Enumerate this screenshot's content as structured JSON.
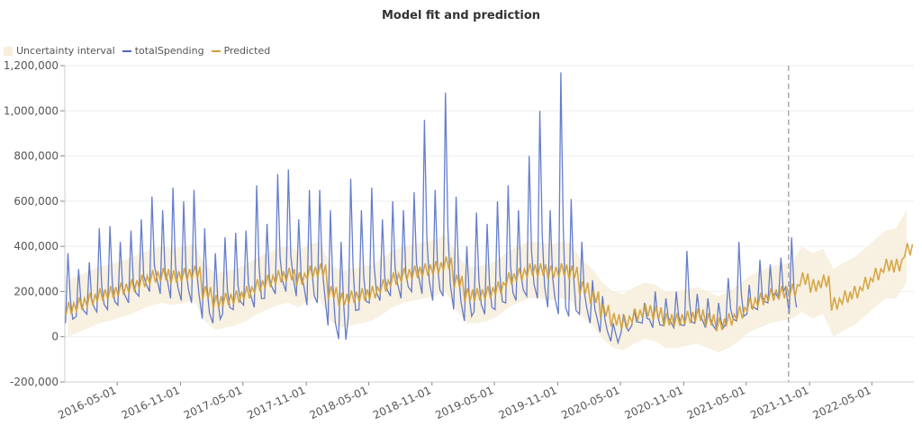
{
  "chart_data": {
    "type": "line",
    "title": "Model fit and prediction",
    "legend": {
      "position": "top-left",
      "entries": [
        "Uncertainty interval",
        "totalSpending",
        "Predicted"
      ]
    },
    "colors": {
      "interval": "#f7efdc",
      "totalSpending": "#4a67c4",
      "Predicted": "#d19e38",
      "marker": "#aaaaaa"
    },
    "ylim": [
      -200000,
      1200000
    ],
    "yticks": [
      -200000,
      0,
      200000,
      400000,
      600000,
      800000,
      1000000,
      1200000
    ],
    "ytick_labels": [
      "-200,000",
      "0",
      "200,000",
      "400,000",
      "600,000",
      "800,000",
      "1,000,000",
      "1,200,000"
    ],
    "xlim": [
      "2015-12-01",
      "2022-08-31"
    ],
    "xticks": [
      "2016-05-01",
      "2016-11-01",
      "2017-05-01",
      "2017-11-01",
      "2018-05-01",
      "2018-11-01",
      "2019-05-01",
      "2019-11-01",
      "2020-05-01",
      "2020-11-01",
      "2021-05-01",
      "2021-11-01",
      "2022-05-01"
    ],
    "grid": true,
    "vertical_marker": "2021-09-01",
    "months": [
      "2015-12",
      "2016-01",
      "2016-02",
      "2016-03",
      "2016-04",
      "2016-05",
      "2016-06",
      "2016-07",
      "2016-08",
      "2016-09",
      "2016-10",
      "2016-11",
      "2016-12",
      "2017-01",
      "2017-02",
      "2017-03",
      "2017-04",
      "2017-05",
      "2017-06",
      "2017-07",
      "2017-08",
      "2017-09",
      "2017-10",
      "2017-11",
      "2017-12",
      "2018-01",
      "2018-02",
      "2018-03",
      "2018-04",
      "2018-05",
      "2018-06",
      "2018-07",
      "2018-08",
      "2018-09",
      "2018-10",
      "2018-11",
      "2018-12",
      "2019-01",
      "2019-02",
      "2019-03",
      "2019-04",
      "2019-05",
      "2019-06",
      "2019-07",
      "2019-08",
      "2019-09",
      "2019-10",
      "2019-11",
      "2019-12",
      "2020-01",
      "2020-02",
      "2020-03",
      "2020-04",
      "2020-05",
      "2020-06",
      "2020-07",
      "2020-08",
      "2020-09",
      "2020-10",
      "2020-11",
      "2020-12",
      "2021-01",
      "2021-02",
      "2021-03",
      "2021-04",
      "2021-05",
      "2021-06",
      "2021-07",
      "2021-08",
      "2021-09",
      "2021-10",
      "2021-11",
      "2021-12",
      "2022-01",
      "2022-02",
      "2022-03",
      "2022-04",
      "2022-05",
      "2022-06",
      "2022-07",
      "2022-08"
    ],
    "series": [
      {
        "name": "totalSpending",
        "values_low_high": [
          [
            60000,
            370000
          ],
          [
            90000,
            300000
          ],
          [
            100000,
            330000
          ],
          [
            110000,
            480000
          ],
          [
            120000,
            490000
          ],
          [
            140000,
            420000
          ],
          [
            150000,
            470000
          ],
          [
            180000,
            520000
          ],
          [
            200000,
            620000
          ],
          [
            190000,
            560000
          ],
          [
            170000,
            660000
          ],
          [
            160000,
            600000
          ],
          [
            150000,
            650000
          ],
          [
            80000,
            480000
          ],
          [
            60000,
            370000
          ],
          [
            100000,
            440000
          ],
          [
            120000,
            460000
          ],
          [
            140000,
            470000
          ],
          [
            130000,
            670000
          ],
          [
            170000,
            500000
          ],
          [
            190000,
            720000
          ],
          [
            200000,
            740000
          ],
          [
            180000,
            520000
          ],
          [
            140000,
            650000
          ],
          [
            150000,
            650000
          ],
          [
            50000,
            560000
          ],
          [
            -10000,
            420000
          ],
          [
            90000,
            700000
          ],
          [
            120000,
            560000
          ],
          [
            150000,
            660000
          ],
          [
            160000,
            520000
          ],
          [
            180000,
            600000
          ],
          [
            170000,
            560000
          ],
          [
            200000,
            640000
          ],
          [
            190000,
            960000
          ],
          [
            160000,
            650000
          ],
          [
            180000,
            1080000
          ],
          [
            120000,
            620000
          ],
          [
            70000,
            400000
          ],
          [
            110000,
            550000
          ],
          [
            100000,
            500000
          ],
          [
            120000,
            600000
          ],
          [
            150000,
            670000
          ],
          [
            160000,
            560000
          ],
          [
            180000,
            800000
          ],
          [
            170000,
            1000000
          ],
          [
            130000,
            560000
          ],
          [
            100000,
            1170000
          ],
          [
            90000,
            610000
          ],
          [
            100000,
            420000
          ],
          [
            60000,
            250000
          ],
          [
            20000,
            180000
          ],
          [
            -20000,
            60000
          ],
          [
            20000,
            100000
          ],
          [
            50000,
            120000
          ],
          [
            60000,
            150000
          ],
          [
            40000,
            200000
          ],
          [
            50000,
            170000
          ],
          [
            40000,
            200000
          ],
          [
            50000,
            380000
          ],
          [
            60000,
            190000
          ],
          [
            40000,
            170000
          ],
          [
            30000,
            150000
          ],
          [
            60000,
            260000
          ],
          [
            70000,
            420000
          ],
          [
            100000,
            230000
          ],
          [
            120000,
            340000
          ],
          [
            150000,
            320000
          ],
          [
            170000,
            350000
          ],
          [
            100000,
            440000
          ]
        ]
      },
      {
        "name": "Predicted",
        "values": [
          130000,
          150000,
          170000,
          190000,
          200000,
          215000,
          230000,
          250000,
          270000,
          280000,
          270000,
          280000,
          290000,
          200000,
          160000,
          170000,
          180000,
          200000,
          230000,
          250000,
          270000,
          280000,
          260000,
          290000,
          300000,
          200000,
          170000,
          180000,
          190000,
          200000,
          230000,
          260000,
          280000,
          290000,
          300000,
          310000,
          330000,
          250000,
          190000,
          190000,
          200000,
          220000,
          260000,
          280000,
          300000,
          300000,
          290000,
          300000,
          290000,
          220000,
          180000,
          120000,
          80000,
          70000,
          100000,
          120000,
          110000,
          80000,
          80000,
          90000,
          100000,
          80000,
          60000,
          80000,
          110000,
          150000,
          170000,
          190000,
          200000,
          210000,
          260000,
          230000,
          250000,
          150000,
          180000,
          200000,
          240000,
          280000,
          320000,
          320000,
          390000
        ]
      },
      {
        "name": "Uncertainty interval",
        "upper": [
          250000,
          270000,
          290000,
          310000,
          320000,
          335000,
          350000,
          370000,
          390000,
          400000,
          390000,
          400000,
          410000,
          320000,
          280000,
          290000,
          300000,
          320000,
          350000,
          370000,
          390000,
          400000,
          380000,
          410000,
          420000,
          320000,
          290000,
          300000,
          310000,
          320000,
          350000,
          380000,
          400000,
          410000,
          420000,
          430000,
          450000,
          370000,
          310000,
          310000,
          320000,
          340000,
          380000,
          400000,
          420000,
          420000,
          410000,
          420000,
          410000,
          340000,
          300000,
          240000,
          200000,
          190000,
          220000,
          240000,
          230000,
          200000,
          200000,
          210000,
          220000,
          200000,
          180000,
          200000,
          230000,
          270000,
          290000,
          310000,
          320000,
          330000,
          400000,
          370000,
          390000,
          300000,
          330000,
          350000,
          390000,
          430000,
          470000,
          480000,
          560000
        ],
        "lower": [
          0,
          20000,
          40000,
          60000,
          70000,
          85000,
          100000,
          120000,
          140000,
          150000,
          140000,
          150000,
          160000,
          70000,
          30000,
          40000,
          50000,
          70000,
          100000,
          120000,
          140000,
          150000,
          130000,
          160000,
          170000,
          70000,
          40000,
          50000,
          60000,
          70000,
          100000,
          130000,
          150000,
          160000,
          170000,
          180000,
          200000,
          120000,
          60000,
          60000,
          70000,
          90000,
          130000,
          150000,
          170000,
          170000,
          160000,
          170000,
          160000,
          90000,
          50000,
          -10000,
          -50000,
          -60000,
          -30000,
          -10000,
          -20000,
          -50000,
          -50000,
          -40000,
          -30000,
          -50000,
          -70000,
          -50000,
          -20000,
          20000,
          40000,
          60000,
          70000,
          80000,
          110000,
          80000,
          100000,
          0,
          30000,
          50000,
          90000,
          130000,
          170000,
          170000,
          240000
        ]
      }
    ]
  }
}
